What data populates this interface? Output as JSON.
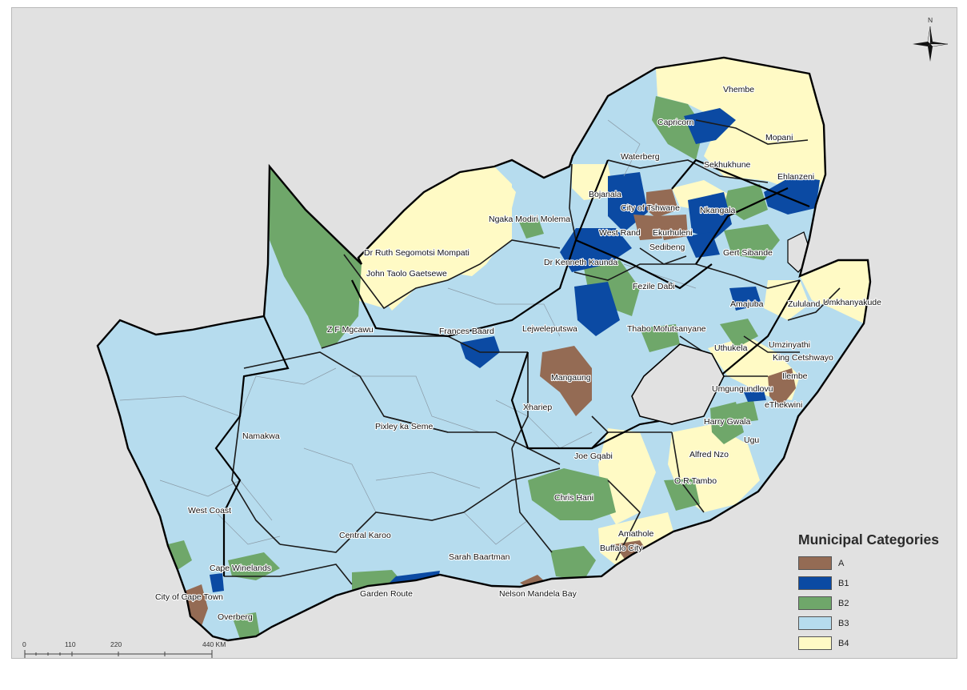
{
  "colors": {
    "A": "#946b54",
    "B1": "#0b4aa3",
    "B2": "#6fa76a",
    "B3": "#b6dcee",
    "B4": "#fffac5"
  },
  "north_label": "N",
  "scale": {
    "labels": [
      "0",
      "110",
      "220",
      "440 KM"
    ]
  },
  "legend": {
    "title": "Municipal Categories",
    "items": [
      {
        "code": "A",
        "label": "A"
      },
      {
        "code": "B1",
        "label": "B1"
      },
      {
        "code": "B2",
        "label": "B2"
      },
      {
        "code": "B3",
        "label": "B3"
      },
      {
        "code": "B4",
        "label": "B4"
      }
    ]
  },
  "districts": {
    "vhembe": "Vhembe",
    "capricorn": "Capricorn",
    "mopani": "Mopani",
    "waterberg": "Waterberg",
    "sekhukhune": "Sekhukhune",
    "ehlanzeni": "Ehlanzeni",
    "bojanala": "Bojanala",
    "city_of_tshwane": "City of Tshwane",
    "nkangala": "Nkangala",
    "ngaka_modiri_molema": "Ngaka Modiri Molema",
    "west_rand": "West Rand",
    "ekurhuleni": "Ekurhuleni",
    "sedibeng": "Sedibeng",
    "gert_sibande": "Gert Sibande",
    "dr_ruth_segomotsi_mompati": "Dr Ruth Segomotsi Mompati",
    "dr_kenneth_kaunda": "Dr Kenneth Kaunda",
    "john_taolo_gaetsewe": "John Taolo Gaetsewe",
    "fezile_dabi": "Fezile Dabi",
    "amajuba": "Amajuba",
    "zululand": "Zululand",
    "umkhanyakude": "Umkhanyakude",
    "z_f_mgcawu": "Z F Mgcawu",
    "frances_baard": "Frances Baard",
    "lejweleputswa": "Lejweleputswa",
    "thabo_mofutsanyane": "Thabo Mofutsanyane",
    "uthukela": "Uthukela",
    "umzinyathi": "Umzinyathi",
    "king_cetshwayo": "King Cetshwayo",
    "ilembe": "Ilembe",
    "mangaung": "Mangaung",
    "umgungundlovu": "Umgungundlovu",
    "ethekwini": "eThekwini",
    "xhariep": "Xhariep",
    "harry_gwala": "Harry Gwala",
    "pixley_ka_seme": "Pixley ka Seme",
    "namakwa": "Namakwa",
    "ugu": "Ugu",
    "joe_gqabi": "Joe Gqabi",
    "alfred_nzo": "Alfred Nzo",
    "or_tambo": "O.R.Tambo",
    "chris_hani": "Chris Hani",
    "west_coast": "West Coast",
    "central_karoo": "Central Karoo",
    "amathole": "Amathole",
    "sarah_baartman": "Sarah Baartman",
    "buffalo_city": "Buffalo City",
    "cape_winelands": "Cape Winelands",
    "garden_route": "Garden Route",
    "nelson_mandela_bay": "Nelson Mandela Bay",
    "city_of_cape_town": "City of Cape Town",
    "overberg": "Overberg"
  }
}
